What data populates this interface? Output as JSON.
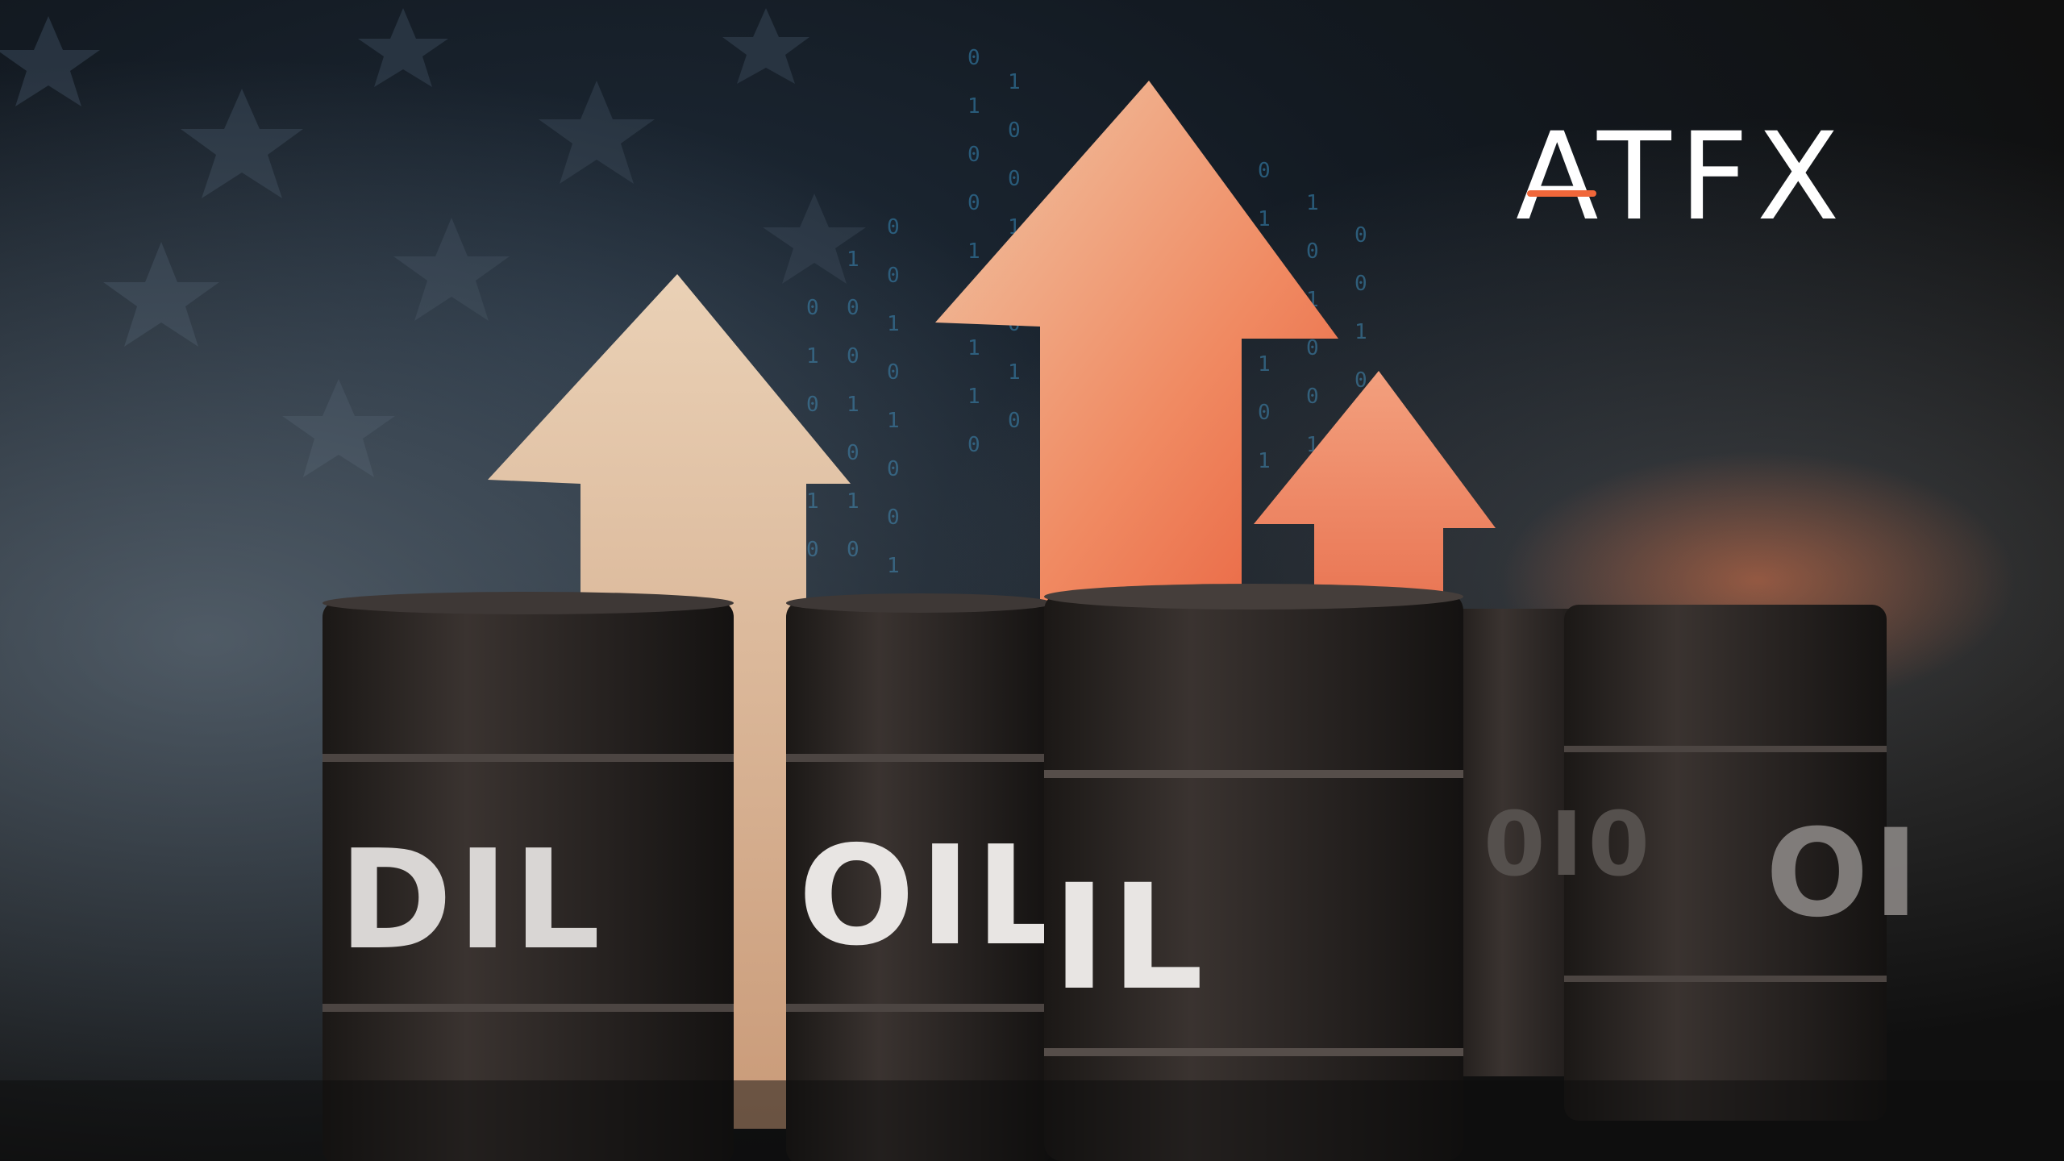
{
  "brand": {
    "logo_text": "ATFX",
    "accent_color": "#f0673a"
  },
  "barrels": [
    {
      "label": "DIL"
    },
    {
      "label": "OIL"
    },
    {
      "label": "IL"
    },
    {
      "label": "0I0"
    },
    {
      "label": "OI"
    }
  ],
  "binary_digits": [
    "0",
    "1",
    "0",
    "0",
    "1",
    "0",
    "1",
    "1",
    "0",
    "0"
  ],
  "colors": {
    "arrow_light": "#e9c8aa",
    "arrow_mid": "#f3a07e",
    "arrow_orange": "#f07a52",
    "barrel_body": "#2a2523",
    "background_dark": "#121212",
    "flag_blue": "#1c2a38"
  }
}
